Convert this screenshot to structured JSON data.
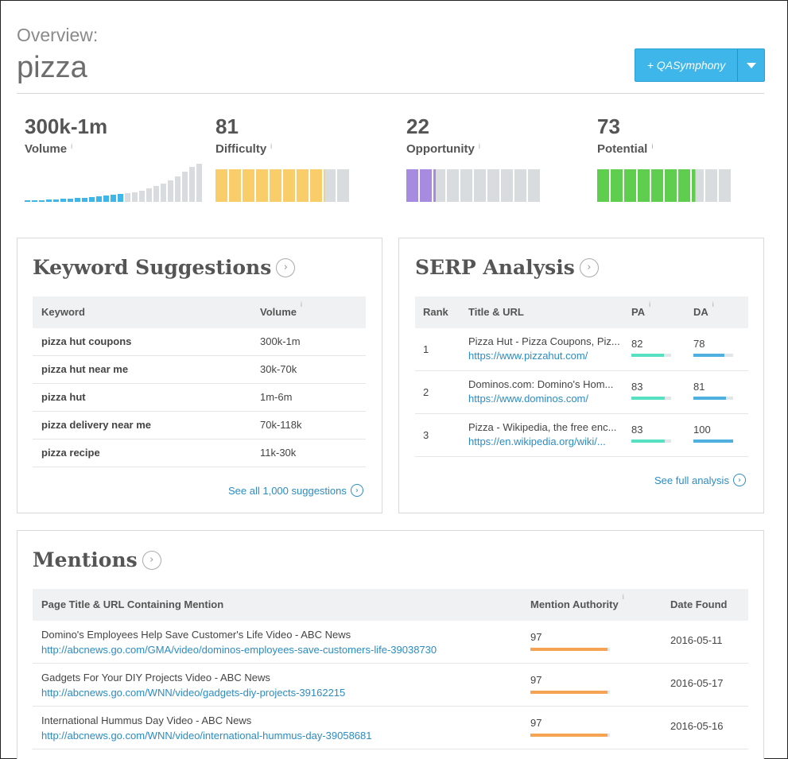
{
  "header": {
    "overview_label": "Overview:",
    "keyword": "pizza",
    "list_button_label": "+ QASymphony"
  },
  "metrics": [
    {
      "value": "300k-1m",
      "label": "Volume",
      "info": "i"
    },
    {
      "value": "81",
      "label": "Difficulty",
      "info": "i",
      "score": 81,
      "color": "#f9cd6a"
    },
    {
      "value": "22",
      "label": "Opportunity",
      "info": "i",
      "score": 22,
      "color": "#a78be0"
    },
    {
      "value": "73",
      "label": "Potential",
      "info": "i",
      "score": 73,
      "color": "#5fce4f"
    }
  ],
  "colors": {
    "blue": "#3fb6ea",
    "gray_bar": "#d8dcde",
    "link": "#2b8cc4",
    "authority": "#f7a354",
    "pa": "#58e0c2",
    "da": "#4fb0e0"
  },
  "keyword_suggestions": {
    "title": "Keyword Suggestions",
    "columns": [
      "Keyword",
      "Volume"
    ],
    "volume_info": "i",
    "rows": [
      {
        "keyword": "pizza hut coupons",
        "volume": "300k-1m"
      },
      {
        "keyword": "pizza hut near me",
        "volume": "30k-70k"
      },
      {
        "keyword": "pizza hut",
        "volume": "1m-6m"
      },
      {
        "keyword": "pizza delivery near me",
        "volume": "70k-118k"
      },
      {
        "keyword": "pizza recipe",
        "volume": "11k-30k"
      }
    ],
    "see_all": "See all 1,000 suggestions"
  },
  "serp": {
    "title": "SERP Analysis",
    "columns": [
      "Rank",
      "Title & URL",
      "PA",
      "DA"
    ],
    "rows": [
      {
        "rank": "1",
        "title": "Pizza Hut - Pizza Coupons, Piz...",
        "url": "https://www.pizzahut.com/",
        "pa": "82",
        "da": "78",
        "pa_pct": 82,
        "da_pct": 78
      },
      {
        "rank": "2",
        "title": "Dominos.com: Domino's Hom...",
        "url": "https://www.dominos.com/",
        "pa": "83",
        "da": "81",
        "pa_pct": 83,
        "da_pct": 81
      },
      {
        "rank": "3",
        "title": "Pizza - Wikipedia, the free enc...",
        "url": "https://en.wikipedia.org/wiki/...",
        "pa": "83",
        "da": "100",
        "pa_pct": 83,
        "da_pct": 100
      }
    ],
    "see_full": "See full analysis"
  },
  "mentions": {
    "title": "Mentions",
    "columns": [
      "Page Title & URL Containing Mention",
      "Mention Authority",
      "Date Found"
    ],
    "rows": [
      {
        "title": "Domino's Employees Help Save Customer's Life Video - ABC News",
        "url": "http://abcnews.go.com/GMA/video/dominos-employees-save-customers-life-39038730",
        "authority": "97",
        "authority_pct": 97,
        "date": "2016-05-11"
      },
      {
        "title": "Gadgets For Your DIY Projects Video - ABC News",
        "url": "http://abcnews.go.com/WNN/video/gadgets-diy-projects-39162215",
        "authority": "97",
        "authority_pct": 97,
        "date": "2016-05-17"
      },
      {
        "title": "International Hummus Day Video - ABC News",
        "url": "http://abcnews.go.com/WNN/video/international-hummus-day-39058681",
        "authority": "97",
        "authority_pct": 97,
        "date": "2016-05-16"
      }
    ]
  }
}
